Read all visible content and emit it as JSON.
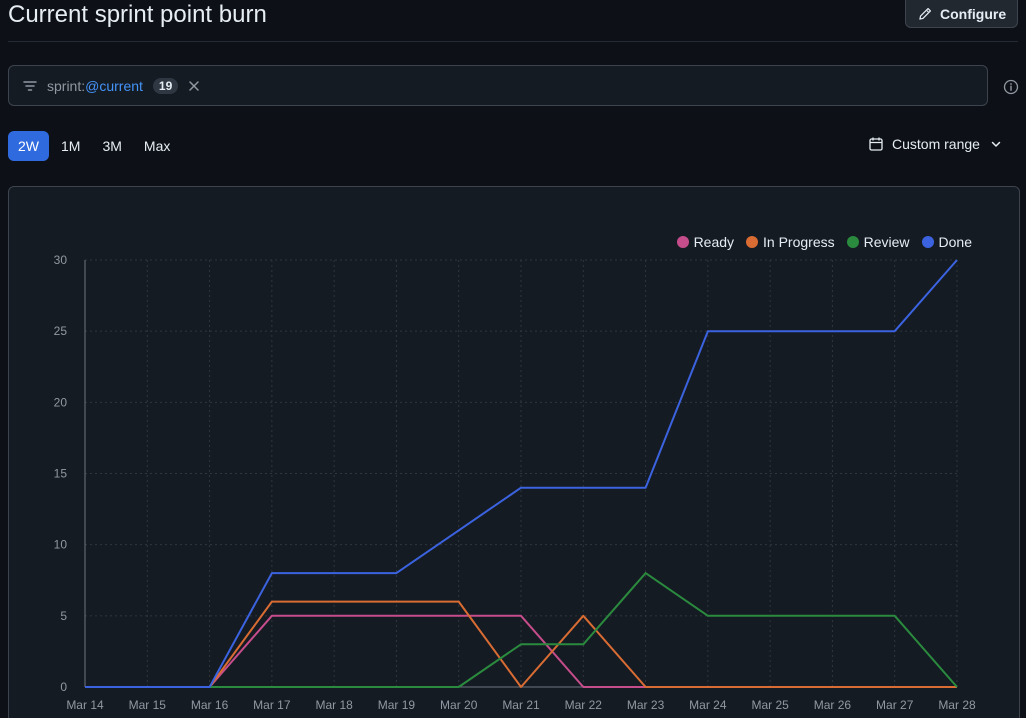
{
  "header": {
    "title": "Current sprint point burn",
    "configure_label": "Configure"
  },
  "filter": {
    "key": "sprint:",
    "value": "@current",
    "count": "19"
  },
  "range_tabs": [
    {
      "label": "2W",
      "active": true
    },
    {
      "label": "1M",
      "active": false
    },
    {
      "label": "3M",
      "active": false
    },
    {
      "label": "Max",
      "active": false
    }
  ],
  "custom_range_label": "Custom range",
  "icons": {
    "configure": "pencil-icon",
    "filter": "filter-icon",
    "clear": "close-icon",
    "info": "info-icon",
    "calendar": "calendar-icon",
    "dropdown": "chevron-down-icon"
  },
  "colors": {
    "accent": "#2f6bdf",
    "link": "#4493f8"
  },
  "chart_data": {
    "type": "line",
    "x": [
      "Mar 14",
      "Mar 15",
      "Mar 16",
      "Mar 17",
      "Mar 18",
      "Mar 19",
      "Mar 20",
      "Mar 21",
      "Mar 22",
      "Mar 23",
      "Mar 24",
      "Mar 25",
      "Mar 26",
      "Mar 27",
      "Mar 28"
    ],
    "ylim": [
      0,
      30
    ],
    "yticks": [
      0,
      5,
      10,
      15,
      20,
      25,
      30
    ],
    "grid": true,
    "legend_position": "top-right",
    "series": [
      {
        "name": "Ready",
        "color": "#c64d8b",
        "values": [
          0,
          0,
          0,
          5,
          5,
          5,
          5,
          5,
          0,
          0,
          0,
          0,
          0,
          0,
          0
        ]
      },
      {
        "name": "In Progress",
        "color": "#d86c33",
        "values": [
          0,
          0,
          0,
          6,
          6,
          6,
          6,
          0,
          5,
          0,
          0,
          0,
          0,
          0,
          0
        ]
      },
      {
        "name": "Review",
        "color": "#2a8a3e",
        "values": [
          0,
          0,
          0,
          0,
          0,
          0,
          0,
          3,
          3,
          8,
          5,
          5,
          5,
          5,
          0
        ]
      },
      {
        "name": "Done",
        "color": "#3b63e0",
        "values": [
          0,
          0,
          0,
          8,
          8,
          8,
          11,
          14,
          14,
          14,
          25,
          25,
          25,
          25,
          30
        ]
      }
    ]
  }
}
